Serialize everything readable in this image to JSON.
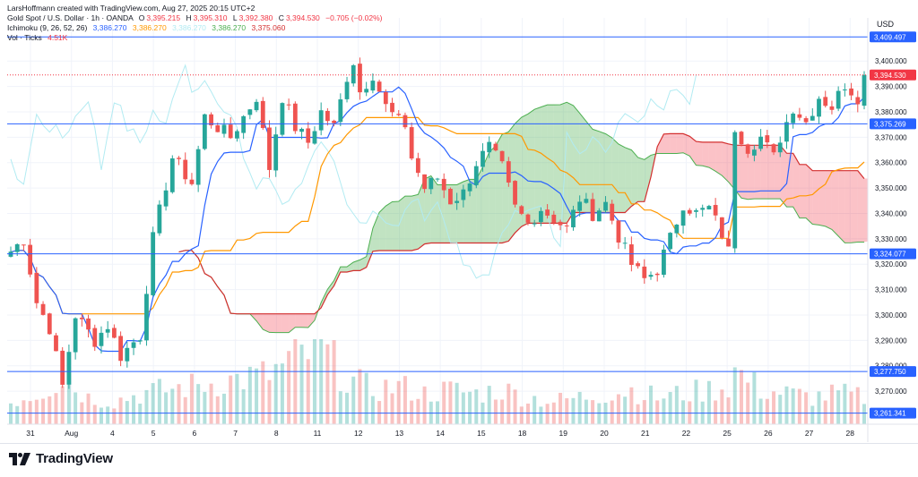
{
  "header": {
    "title_line": "LarsHoffmann created with TradingView.com, Aug 27, 2025 20:15 UTC+2",
    "symbol": "Gold Spot / U.S. Dollar · 1h · OANDA",
    "ohlc": [
      {
        "key": "O",
        "value": "3,395.215"
      },
      {
        "key": "H",
        "value": "3,395.310"
      },
      {
        "key": "L",
        "value": "3,392.380"
      },
      {
        "key": "C",
        "value": "3,394.530"
      }
    ],
    "change": "−0.705 (−0.02%)",
    "ichimoku_label": "Ichimoku (9, 26, 52, 26)",
    "ichimoku_values": [
      "3,386.270",
      "3,386.270",
      "3,386.270",
      "3,386.270",
      "3,375.060"
    ],
    "volume_label": "Vol · Ticks",
    "volume_value": "4.51K"
  },
  "currency": "USD",
  "footer": {
    "brand": "TradingView"
  },
  "colors": {
    "up": "#26a69a",
    "down": "#ef5350",
    "tenkan": "#2962ff",
    "kijun": "#ff9800",
    "chikou": "#b2ebf2",
    "span_a": "#4caf50",
    "span_b": "#d32f2f",
    "cloud_up": "rgba(76,175,80,0.35)",
    "cloud_down": "rgba(242,54,69,0.3)",
    "hline": "#2962ff",
    "current_price": "#f23645"
  },
  "chart_data": {
    "type": "candlestick",
    "symbol": "Gold Spot / U.S. Dollar",
    "interval": "1h",
    "ylim": [
      3257,
      3417
    ],
    "y_ticks": [
      3270,
      3280,
      3290,
      3300,
      3310,
      3320,
      3330,
      3340,
      3350,
      3360,
      3370,
      3380,
      3390,
      3400
    ],
    "y_tick_labels": [
      "3,270.000",
      "3,280.000",
      "3,290.000",
      "3,300.000",
      "3,310.000",
      "3,320.000",
      "3,330.000",
      "3,340.000",
      "3,350.000",
      "3,360.000",
      "3,370.000",
      "3,380.000",
      "3,390.000",
      "3,400.000"
    ],
    "x_labels": [
      "31",
      "Aug",
      "4",
      "5",
      "6",
      "7",
      "8",
      "11",
      "12",
      "13",
      "14",
      "15",
      "18",
      "19",
      "20",
      "21",
      "22",
      "25",
      "26",
      "27",
      "28"
    ],
    "horizontal_lines": [
      {
        "value": 3409.497,
        "label": "3,409.497"
      },
      {
        "value": 3375.269,
        "label": "3,375.269"
      },
      {
        "value": 3324.077,
        "label": "3,324.077"
      },
      {
        "value": 3277.75,
        "label": "3,277.750"
      },
      {
        "value": 3261.341,
        "label": "3,261.341"
      }
    ],
    "current_price": {
      "value": 3394.53,
      "label": "3,394.530"
    },
    "price_path": [
      [
        0,
        3325
      ],
      [
        2,
        3330
      ],
      [
        4,
        3305
      ],
      [
        6,
        3295
      ],
      [
        8,
        3272
      ],
      [
        10,
        3300
      ],
      [
        13,
        3290
      ],
      [
        15,
        3296
      ],
      [
        17,
        3284
      ],
      [
        20,
        3292
      ],
      [
        22,
        3330
      ],
      [
        25,
        3362
      ],
      [
        28,
        3352
      ],
      [
        30,
        3378
      ],
      [
        34,
        3370
      ],
      [
        38,
        3386
      ],
      [
        40,
        3358
      ],
      [
        42,
        3386
      ],
      [
        44,
        3374
      ],
      [
        46,
        3368
      ],
      [
        48,
        3380
      ],
      [
        50,
        3374
      ],
      [
        52,
        3394
      ],
      [
        53,
        3400
      ],
      [
        54,
        3388
      ],
      [
        56,
        3395
      ],
      [
        58,
        3382
      ],
      [
        60,
        3376
      ],
      [
        61,
        3375
      ],
      [
        62,
        3362
      ],
      [
        64,
        3350
      ],
      [
        66,
        3354
      ],
      [
        68,
        3345
      ],
      [
        70,
        3348
      ],
      [
        72,
        3360
      ],
      [
        74,
        3366
      ],
      [
        76,
        3358
      ],
      [
        78,
        3342
      ],
      [
        80,
        3336
      ],
      [
        82,
        3342
      ],
      [
        84,
        3338
      ],
      [
        86,
        3334
      ],
      [
        88,
        3346
      ],
      [
        90,
        3340
      ],
      [
        92,
        3344
      ],
      [
        94,
        3331
      ],
      [
        96,
        3320
      ],
      [
        98,
        3314
      ],
      [
        100,
        3318
      ],
      [
        102,
        3330
      ],
      [
        104,
        3344
      ],
      [
        106,
        3340
      ],
      [
        108,
        3342
      ],
      [
        110,
        3332
      ],
      [
        111,
        3325
      ],
      [
        112,
        3374
      ],
      [
        114,
        3366
      ],
      [
        116,
        3370
      ],
      [
        118,
        3362
      ],
      [
        119,
        3370
      ],
      [
        121,
        3382
      ],
      [
        123,
        3376
      ],
      [
        125,
        3386
      ],
      [
        127,
        3382
      ],
      [
        129,
        3391
      ],
      [
        131,
        3386
      ],
      [
        132,
        3394
      ]
    ],
    "volume_profile": [
      [
        0,
        0.3
      ],
      [
        4,
        0.4
      ],
      [
        8,
        0.6
      ],
      [
        12,
        0.35
      ],
      [
        16,
        0.3
      ],
      [
        20,
        0.4
      ],
      [
        24,
        0.45
      ],
      [
        28,
        0.5
      ],
      [
        32,
        0.55
      ],
      [
        36,
        0.6
      ],
      [
        40,
        0.65
      ],
      [
        44,
        0.85
      ],
      [
        48,
        1.0
      ],
      [
        52,
        0.6
      ],
      [
        56,
        0.45
      ],
      [
        60,
        0.5
      ],
      [
        64,
        0.4
      ],
      [
        68,
        0.45
      ],
      [
        72,
        0.4
      ],
      [
        76,
        0.45
      ],
      [
        80,
        0.35
      ],
      [
        84,
        0.3
      ],
      [
        88,
        0.35
      ],
      [
        92,
        0.4
      ],
      [
        96,
        0.45
      ],
      [
        100,
        0.35
      ],
      [
        104,
        0.4
      ],
      [
        108,
        0.45
      ],
      [
        111,
        0.5
      ],
      [
        112,
        0.7
      ],
      [
        116,
        0.45
      ],
      [
        120,
        0.4
      ],
      [
        124,
        0.35
      ],
      [
        128,
        0.4
      ],
      [
        132,
        0.35
      ]
    ]
  }
}
